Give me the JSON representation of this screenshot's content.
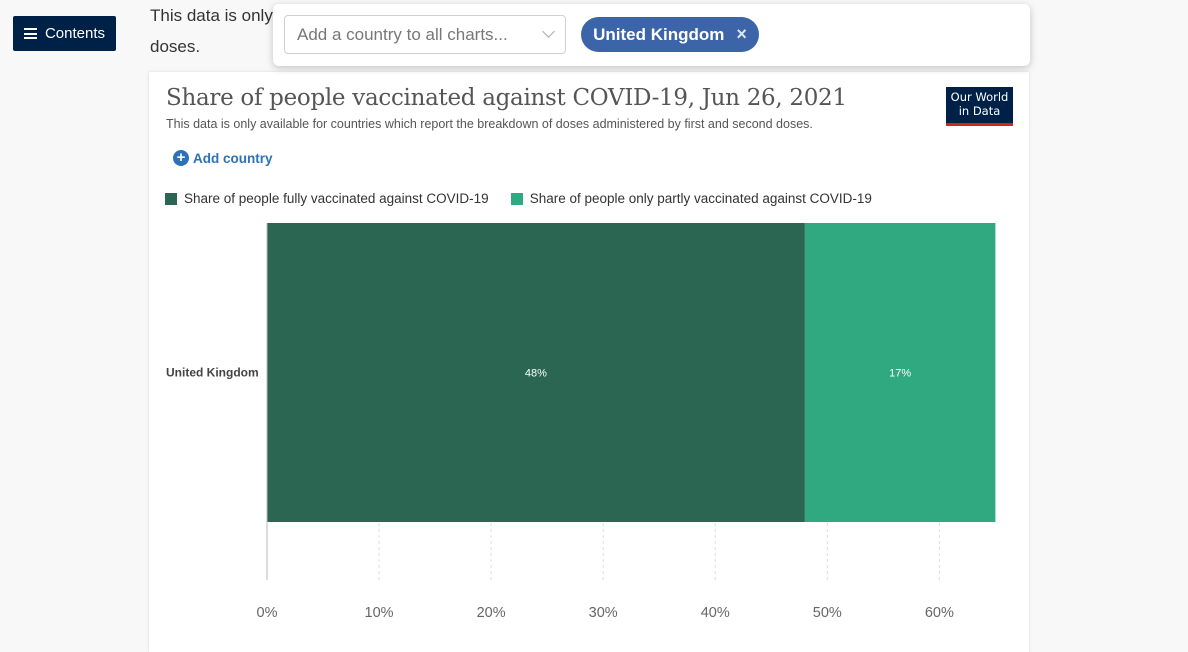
{
  "nav": {
    "contents_label": "Contents",
    "icon": "hamburger-icon"
  },
  "background_text": {
    "line1": "This data is only",
    "line2": "doses."
  },
  "country_bar": {
    "placeholder": "Add a country to all charts...",
    "selected_country": "United Kingdom",
    "remove_symbol": "×"
  },
  "chart": {
    "title": "Share of people vaccinated against COVID-19, Jun 26, 2021",
    "subtitle": "This data is only available for countries which report the breakdown of doses administered by first and second doses.",
    "logo_line1": "Our World",
    "logo_line2": "in Data",
    "add_country_label": "Add country",
    "legend": [
      {
        "label": "Share of people fully vaccinated against COVID-19",
        "color": "#2a6651"
      },
      {
        "label": "Share of people only partly vaccinated against COVID-19",
        "color": "#30a880"
      }
    ]
  },
  "chart_data": {
    "type": "bar",
    "orientation": "horizontal",
    "stacked": true,
    "categories": [
      "United Kingdom"
    ],
    "series": [
      {
        "name": "Share of people fully vaccinated against COVID-19",
        "values": [
          48
        ],
        "labels": [
          "48%"
        ],
        "color": "#2a6651"
      },
      {
        "name": "Share of people only partly vaccinated against COVID-19",
        "values": [
          17
        ],
        "labels": [
          "17%"
        ],
        "color": "#30a880"
      }
    ],
    "xlim": [
      0,
      65.5
    ],
    "xticks": [
      0,
      10,
      20,
      30,
      40,
      50,
      60
    ],
    "xtick_labels": [
      "0%",
      "10%",
      "20%",
      "30%",
      "40%",
      "50%",
      "60%"
    ],
    "grid": "vertical dashed",
    "legend": "top-left"
  }
}
